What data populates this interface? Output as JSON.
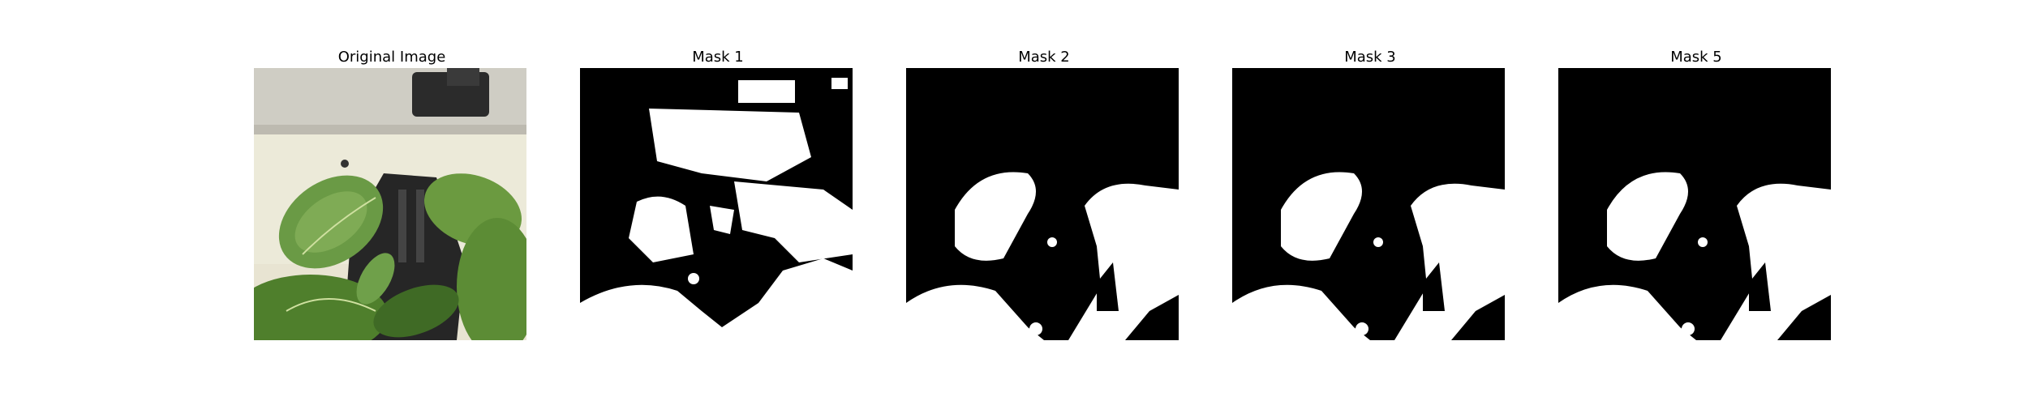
{
  "panels": [
    {
      "title": "Original Image"
    },
    {
      "title": "Mask 1"
    },
    {
      "title": "Mask 2"
    },
    {
      "title": "Mask 3"
    },
    {
      "title": "Mask 5"
    }
  ],
  "colors": {
    "mask_background": "#000000",
    "mask_foreground": "#ffffff",
    "leaf": "#5f8f3a",
    "leaf_dark": "#3f6a25",
    "tray": "#2a2a2a",
    "wall": "#e9e6d6"
  }
}
